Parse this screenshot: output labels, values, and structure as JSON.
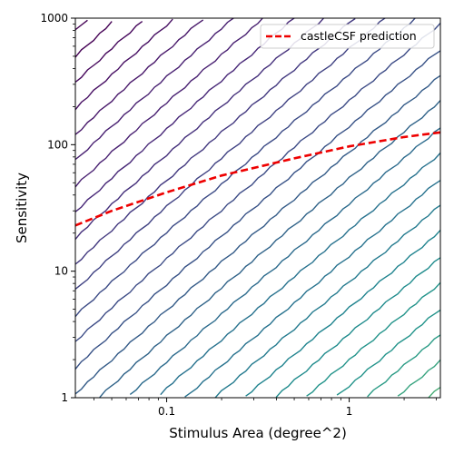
{
  "chart_data": {
    "type": "line",
    "x_scale": "log",
    "y_scale": "log",
    "xlabel": "Stimulus Area (degree^2)",
    "ylabel": "Sensitivity",
    "xlim": [
      0.0316,
      3.16
    ],
    "ylim": [
      1,
      1000
    ],
    "x_ticks": [
      0.1,
      1
    ],
    "x_tick_labels": [
      "0.1",
      "1"
    ],
    "y_ticks": [
      1,
      10,
      100,
      1000
    ],
    "y_tick_labels": [
      "1",
      "10",
      "100",
      "1000"
    ],
    "grid": false,
    "legend": {
      "position": "top-right"
    },
    "series": [
      {
        "name": "castleCSF prediction",
        "color": "#ee0000",
        "style": "dashed",
        "x": [
          0.0316,
          0.05,
          0.1,
          0.2,
          0.5,
          1.0,
          2.0,
          3.16
        ],
        "y": [
          23,
          30,
          42,
          57,
          78,
          97,
          115,
          125
        ]
      }
    ],
    "contours": {
      "colormap": "viridis",
      "levels": 24,
      "note_lines": [
        {
          "color": "#440154",
          "x": [
            0.0316,
            0.045,
            0.07,
            0.1
          ],
          "y": [
            260,
            420,
            700,
            1000
          ]
        },
        {
          "color": "#46085c",
          "x": [
            0.0316,
            0.04,
            0.06,
            0.1,
            0.15,
            0.25,
            0.4,
            0.6
          ],
          "y": [
            30,
            38,
            70,
            180,
            380,
            560,
            800,
            1000
          ]
        }
      ]
    }
  }
}
